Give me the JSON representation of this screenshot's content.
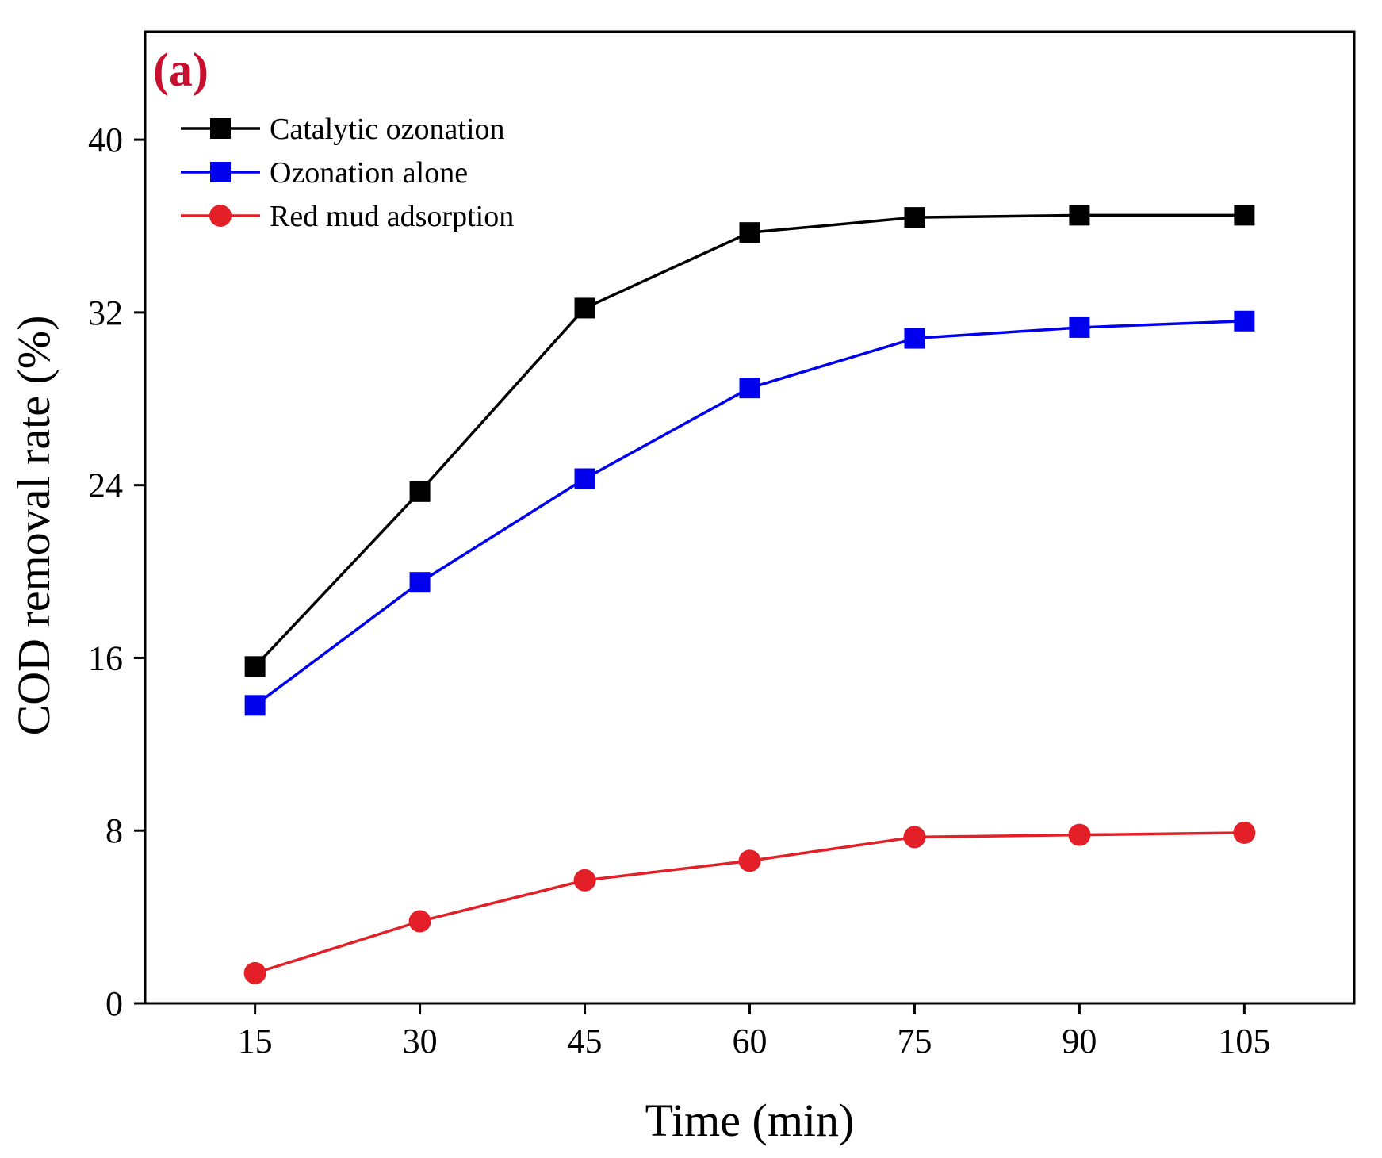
{
  "chart_data": {
    "type": "line",
    "panel_label": "(a)",
    "title": "",
    "xlabel": "Time (min)",
    "ylabel": "COD removal rate (%)",
    "x": [
      15,
      30,
      45,
      60,
      75,
      90,
      105
    ],
    "xticks": [
      15,
      30,
      45,
      60,
      75,
      90,
      105
    ],
    "yticks": [
      0,
      8,
      16,
      24,
      32,
      40
    ],
    "xlim": [
      5,
      115
    ],
    "ylim": [
      0,
      45
    ],
    "grid": false,
    "legend_position": "top-left",
    "series": [
      {
        "name": "Catalytic ozonation",
        "marker": "square",
        "color": "#000000",
        "values": [
          15.6,
          23.7,
          32.2,
          35.7,
          36.4,
          36.5,
          36.5
        ]
      },
      {
        "name": "Ozonation alone",
        "marker": "square",
        "color": "#0000ee",
        "values": [
          13.8,
          19.5,
          24.3,
          28.5,
          30.8,
          31.3,
          31.6
        ]
      },
      {
        "name": "Red mud adsorption",
        "marker": "circle",
        "color": "#e32027",
        "values": [
          1.4,
          3.8,
          5.7,
          6.6,
          7.7,
          7.8,
          7.9
        ]
      }
    ]
  },
  "colors": {
    "panel_label": "#c8102e",
    "axis": "#000000"
  }
}
